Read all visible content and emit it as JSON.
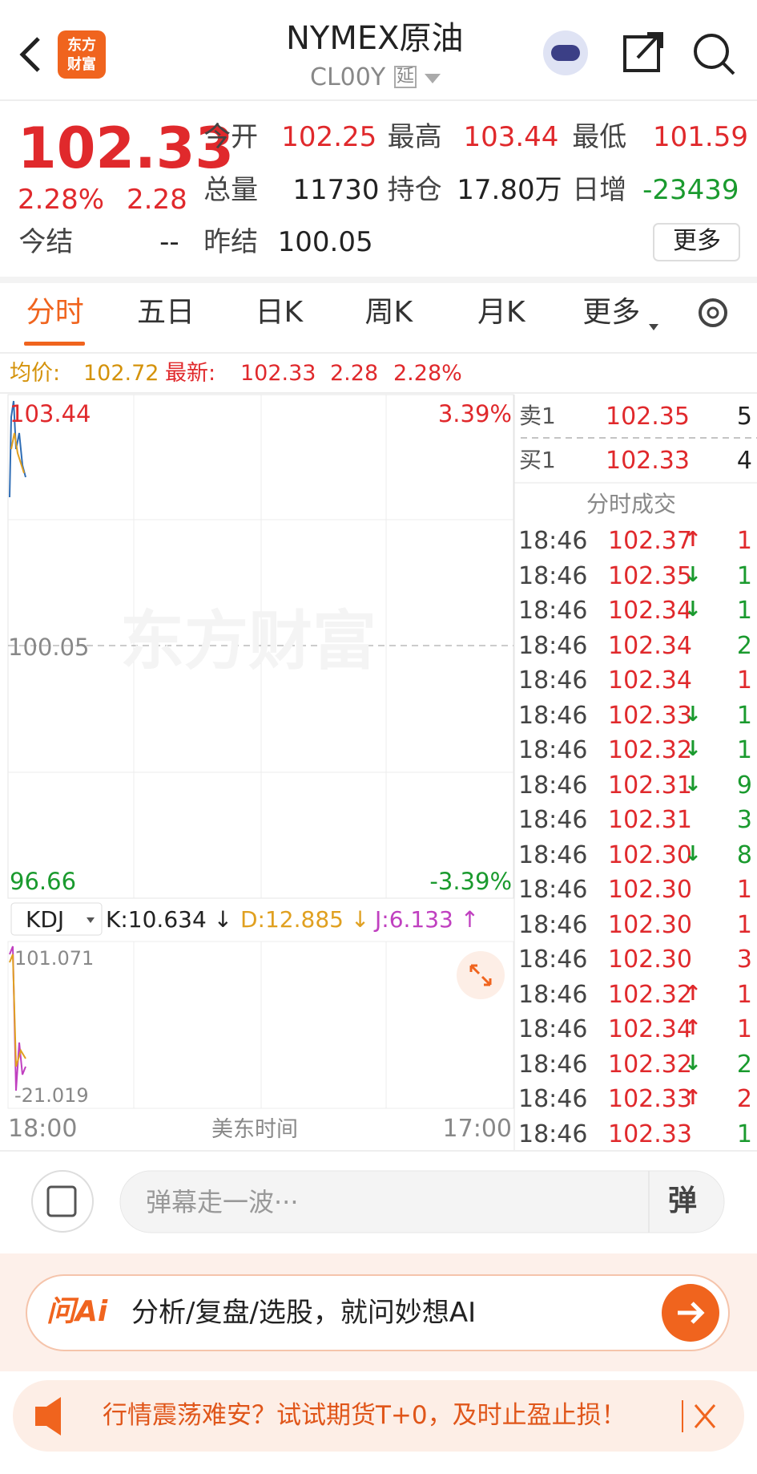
{
  "header": {
    "title": "NYMEX原油",
    "code": "CL00Y",
    "delay_tag": "延"
  },
  "quote": {
    "price": "102.33",
    "change_pct": "2.28%",
    "change": "2.28",
    "more": "更多",
    "fields": [
      {
        "label": "今开",
        "value": "102.25",
        "color": "#e0292c"
      },
      {
        "label": "最高",
        "value": "103.44",
        "color": "#e0292c"
      },
      {
        "label": "最低",
        "value": "101.59",
        "color": "#e0292c"
      },
      {
        "label": "总量",
        "value": "11730",
        "color": "#222222"
      },
      {
        "label": "持仓",
        "value": "17.80万",
        "color": "#222222"
      },
      {
        "label": "日增",
        "value": "-23439",
        "color": "#1a9a2e"
      },
      {
        "label": "今结",
        "value": "--",
        "color": "#222222"
      },
      {
        "label": "昨结",
        "value": "100.05",
        "color": "#222222"
      }
    ]
  },
  "tabs": [
    "分时",
    "五日",
    "日K",
    "周K",
    "月K",
    "更多"
  ],
  "info_bar": {
    "avg_label": "均价:",
    "avg": "102.72",
    "latest_label": "最新:",
    "latest": "102.33",
    "change": "2.28",
    "pct": "2.28%"
  },
  "chart": {
    "y_high": "103.44",
    "y_mid": "100.05",
    "y_low": "96.66",
    "pct_high": "3.39%",
    "pct_low": "-3.39%",
    "watermark": "东方财富",
    "indicator": "KDJ",
    "k": "K:10.634 ↓",
    "d": "D:12.885 ↓",
    "j": "J:6.133 ↑",
    "kdj_high": "101.071",
    "kdj_low": "-21.019",
    "x_start": "18:00",
    "x_mid": "美东时间",
    "x_end": "17:00"
  },
  "order_book": [
    {
      "label": "卖1",
      "price": "102.35",
      "volume": "5"
    },
    {
      "label": "买1",
      "price": "102.33",
      "volume": "4"
    }
  ],
  "trades_title": "分时成交",
  "trades": [
    {
      "time": "18:46",
      "price": "102.37",
      "arrow": "↑",
      "arrow_color": "#e0292c",
      "volume": "1",
      "volume_color": "#e0292c"
    },
    {
      "time": "18:46",
      "price": "102.35",
      "arrow": "↓",
      "arrow_color": "#1a9a2e",
      "volume": "1",
      "volume_color": "#1a9a2e"
    },
    {
      "time": "18:46",
      "price": "102.34",
      "arrow": "↓",
      "arrow_color": "#1a9a2e",
      "volume": "1",
      "volume_color": "#1a9a2e"
    },
    {
      "time": "18:46",
      "price": "102.34",
      "volume": "2",
      "volume_color": "#1a9a2e"
    },
    {
      "time": "18:46",
      "price": "102.34",
      "volume": "1",
      "volume_color": "#e0292c"
    },
    {
      "time": "18:46",
      "price": "102.33",
      "arrow": "↓",
      "arrow_color": "#1a9a2e",
      "volume": "1",
      "volume_color": "#1a9a2e"
    },
    {
      "time": "18:46",
      "price": "102.32",
      "arrow": "↓",
      "arrow_color": "#1a9a2e",
      "volume": "1",
      "volume_color": "#1a9a2e"
    },
    {
      "time": "18:46",
      "price": "102.31",
      "arrow": "↓",
      "arrow_color": "#1a9a2e",
      "volume": "9",
      "volume_color": "#1a9a2e"
    },
    {
      "time": "18:46",
      "price": "102.31",
      "volume": "3",
      "volume_color": "#1a9a2e"
    },
    {
      "time": "18:46",
      "price": "102.30",
      "arrow": "↓",
      "arrow_color": "#1a9a2e",
      "volume": "8",
      "volume_color": "#1a9a2e"
    },
    {
      "time": "18:46",
      "price": "102.30",
      "volume": "1",
      "volume_color": "#e0292c"
    },
    {
      "time": "18:46",
      "price": "102.30",
      "volume": "1",
      "volume_color": "#e0292c"
    },
    {
      "time": "18:46",
      "price": "102.30",
      "volume": "3",
      "volume_color": "#e0292c"
    },
    {
      "time": "18:46",
      "price": "102.32",
      "arrow": "↑",
      "arrow_color": "#e0292c",
      "volume": "1",
      "volume_color": "#e0292c"
    },
    {
      "time": "18:46",
      "price": "102.34",
      "arrow": "↑",
      "arrow_color": "#e0292c",
      "volume": "1",
      "volume_color": "#e0292c"
    },
    {
      "time": "18:46",
      "price": "102.32",
      "arrow": "↓",
      "arrow_color": "#1a9a2e",
      "volume": "2",
      "volume_color": "#1a9a2e"
    },
    {
      "time": "18:46",
      "price": "102.33",
      "arrow": "↑",
      "arrow_color": "#e0292c",
      "volume": "2",
      "volume_color": "#e0292c"
    },
    {
      "time": "18:46",
      "price": "102.33",
      "volume": "1",
      "volume_color": "#1a9a2e"
    }
  ],
  "comment": {
    "placeholder": "弹幕走一波···",
    "button": "弹"
  },
  "ai": {
    "brand": "问Ai",
    "prompt": "分析/复盘/选股，就问妙想AI"
  },
  "banner": {
    "text": "行情震荡难安？试试期货T+0，及时止盈止损！"
  }
}
